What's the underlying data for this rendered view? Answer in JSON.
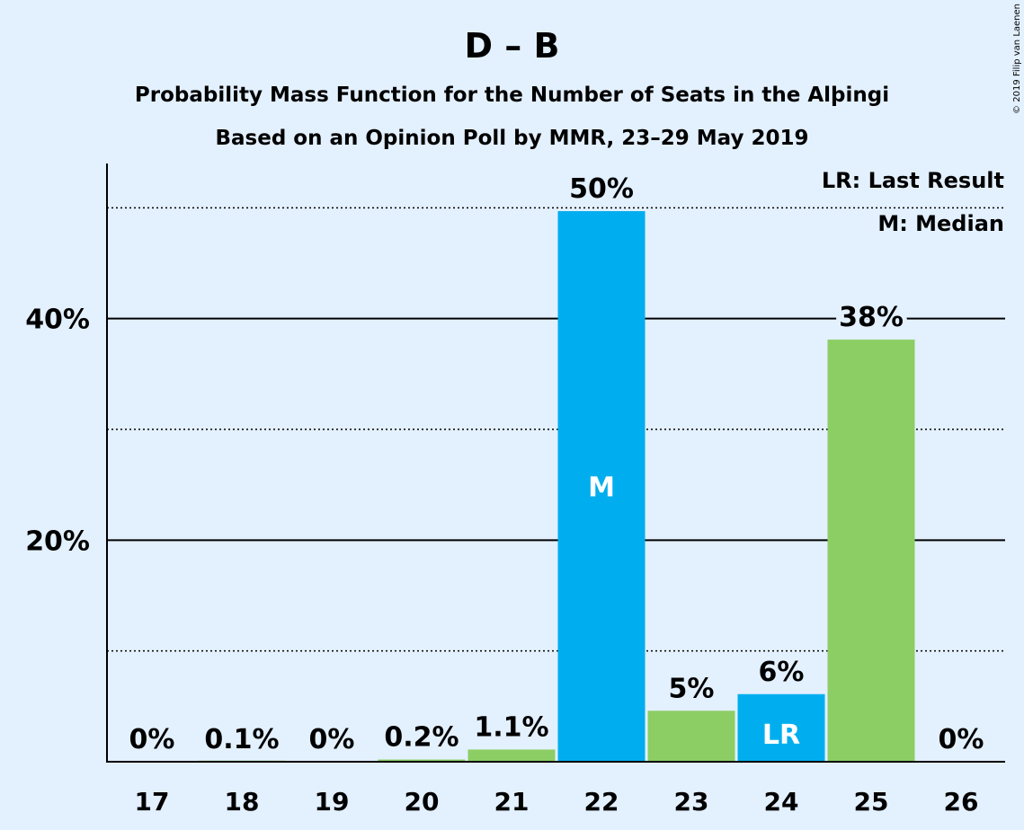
{
  "colors": {
    "background": "#e3f0fe",
    "text": "#1a0a14",
    "bar_blue": "#00aeef",
    "bar_green": "#8cce64",
    "axis": "#000000"
  },
  "chart_data": {
    "type": "bar",
    "title": "D – B",
    "subtitle1": "Probability Mass Function for the Number of Seats in the Alþingi",
    "subtitle2": "Based on an Opinion Poll by MMR, 23–29 May 2019",
    "copyright": "© 2019 Filip van Laenen",
    "legend": {
      "last_result": "LR: Last Result",
      "median": "M: Median",
      "placement": "top-right"
    },
    "categories": [
      "17",
      "18",
      "19",
      "20",
      "21",
      "22",
      "23",
      "24",
      "25",
      "26"
    ],
    "values": [
      0,
      0.1,
      0,
      0.2,
      1.1,
      49.7,
      4.6,
      6.1,
      38.1,
      0
    ],
    "value_labels": [
      "0%",
      "0.1%",
      "0%",
      "0.2%",
      "1.1%",
      "50%",
      "5%",
      "6%",
      "38%",
      "0%"
    ],
    "bar_colors": [
      "blue",
      "green",
      "blue",
      "green",
      "green",
      "blue",
      "green",
      "blue",
      "green",
      "blue"
    ],
    "inner_labels": {
      "22": "M",
      "24": "LR"
    },
    "ylim": [
      0,
      54
    ],
    "y_major_ticks": [
      20,
      40
    ],
    "y_tick_labels": [
      "20%",
      "40%"
    ],
    "y_minor_gridlines": [
      10,
      30,
      50
    ],
    "xlabel": "",
    "ylabel": ""
  }
}
